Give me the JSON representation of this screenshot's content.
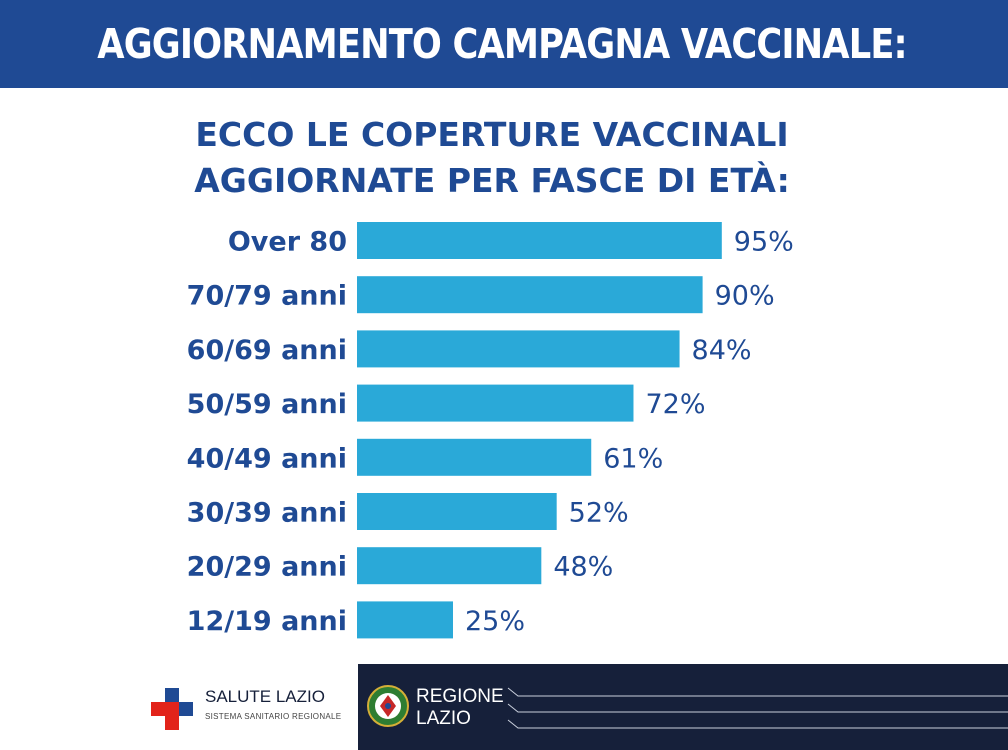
{
  "header": {
    "title": "AGGIORNAMENTO CAMPAGNA VACCINALE:"
  },
  "colors": {
    "banner": "#1f4a94",
    "bar": "#2aa9d8",
    "text": "#1f4a94",
    "footer_dark": "#16203a",
    "cross_blue": "#1f4a94",
    "cross_red": "#e2231a"
  },
  "chart_data": {
    "type": "bar",
    "orientation": "horizontal",
    "title": "ECCO LE COPERTURE VACCINALI AGGIORNATE PER FASCE DI ETÀ:",
    "title_lines": [
      "ECCO LE COPERTURE VACCINALI",
      "AGGIORNATE PER FASCE DI ETÀ:"
    ],
    "categories": [
      "Over 80",
      "70/79 anni",
      "60/69 anni",
      "50/59 anni",
      "40/49 anni",
      "30/39 anni",
      "20/29 anni",
      "12/19 anni"
    ],
    "values": [
      95,
      90,
      84,
      72,
      61,
      52,
      48,
      25
    ],
    "value_labels": [
      "95%",
      "90%",
      "84%",
      "72%",
      "61%",
      "52%",
      "48%",
      "25%"
    ],
    "unit": "%",
    "xlim": [
      0,
      100
    ],
    "grid": false,
    "legend": "none"
  },
  "footer": {
    "left": {
      "name": "SALUTE LAZIO",
      "subtitle": "SISTEMA SANITARIO REGIONALE",
      "icon": "medical-cross-icon"
    },
    "right": {
      "line1": "REGIONE",
      "line2": "LAZIO",
      "icon": "regione-emblem-icon"
    }
  }
}
